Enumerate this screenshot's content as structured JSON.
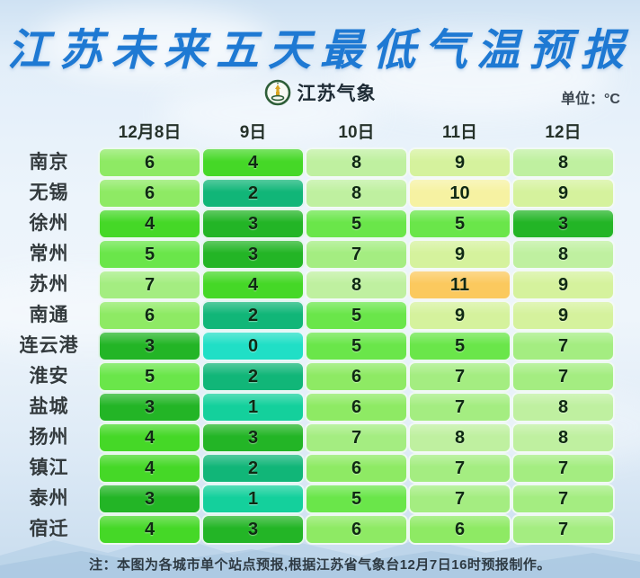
{
  "title": "江苏未来五天最低气温预报",
  "logo": {
    "text": "江苏气象"
  },
  "unit_label": "单位：°C",
  "footnote": "注：本图为各城市单个站点预报,根据江苏省气象台12月7日16时预报制作。",
  "chart_data": {
    "type": "heatmap",
    "title": "江苏未来五天最低气温预报",
    "unit": "°C",
    "columns": [
      "12月8日",
      "9日",
      "10日",
      "11日",
      "12日"
    ],
    "rows": [
      "南京",
      "无锡",
      "徐州",
      "常州",
      "苏州",
      "南通",
      "连云港",
      "淮安",
      "盐城",
      "扬州",
      "镇江",
      "泰州",
      "宿迁"
    ],
    "values": [
      [
        6,
        4,
        8,
        9,
        8
      ],
      [
        6,
        2,
        8,
        10,
        9
      ],
      [
        4,
        3,
        5,
        5,
        3
      ],
      [
        5,
        3,
        7,
        9,
        8
      ],
      [
        7,
        4,
        8,
        11,
        9
      ],
      [
        6,
        2,
        5,
        9,
        9
      ],
      [
        3,
        0,
        5,
        5,
        7
      ],
      [
        5,
        2,
        6,
        7,
        7
      ],
      [
        3,
        1,
        6,
        7,
        8
      ],
      [
        4,
        3,
        7,
        8,
        8
      ],
      [
        4,
        2,
        6,
        7,
        7
      ],
      [
        3,
        1,
        5,
        7,
        7
      ],
      [
        4,
        3,
        6,
        6,
        7
      ]
    ],
    "color_scale": {
      "0": "#20dfc6",
      "1": "#14d09c",
      "2": "#11b678",
      "3": "#23b526",
      "4": "#45d827",
      "5": "#6ae64a",
      "6": "#8eea64",
      "7": "#a4ed81",
      "8": "#bff0a0",
      "9": "#d5f29d",
      "10": "#f6f2a2",
      "11": "#fbc95e"
    }
  },
  "colors": {
    "title_blue": "#1e79d3",
    "logo_ring_green": "#2e5e38",
    "logo_tower_gold": "#d9a520"
  }
}
